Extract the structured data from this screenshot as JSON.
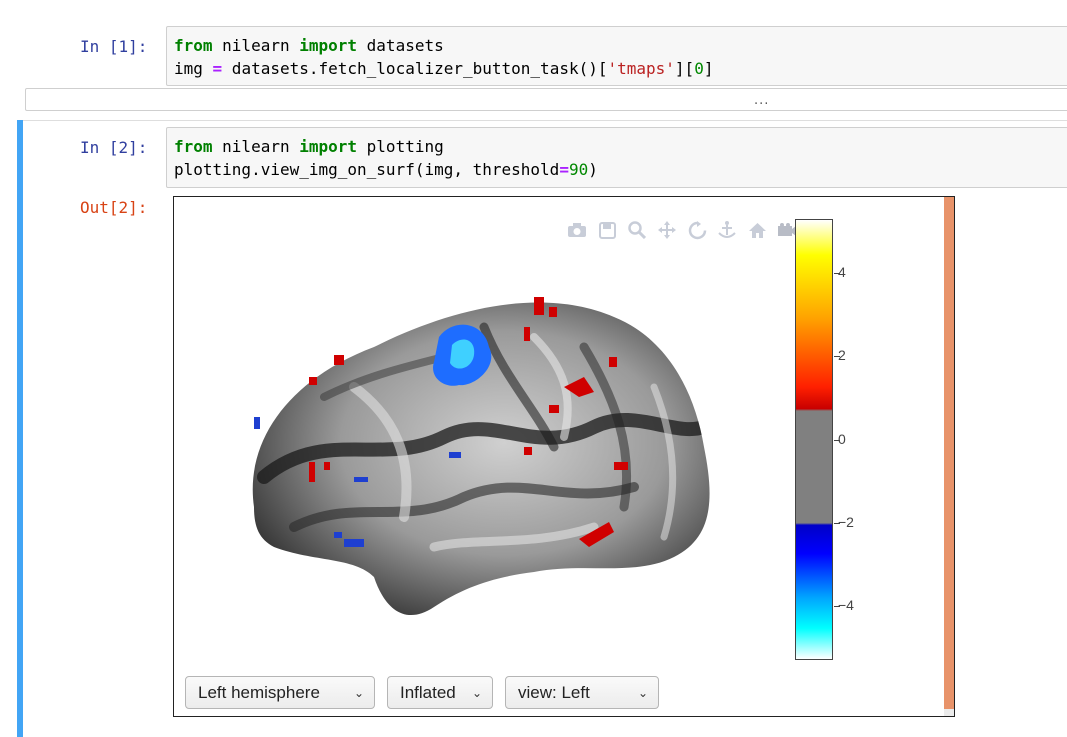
{
  "cells": [
    {
      "prompt": "In [1]:",
      "lines": [
        [
          {
            "t": "from",
            "c": "kw"
          },
          {
            "t": " nilearn ",
            "c": ""
          },
          {
            "t": "import",
            "c": "kw"
          },
          {
            "t": " datasets",
            "c": ""
          }
        ],
        [
          {
            "t": "img ",
            "c": ""
          },
          {
            "t": "=",
            "c": "op"
          },
          {
            "t": " datasets.fetch_localizer_button_task()[",
            "c": ""
          },
          {
            "t": "'tmaps'",
            "c": "str"
          },
          {
            "t": "][",
            "c": ""
          },
          {
            "t": "0",
            "c": "num"
          },
          {
            "t": "]",
            "c": ""
          }
        ]
      ]
    },
    {
      "prompt": "In [2]:",
      "lines": [
        [
          {
            "t": "from",
            "c": "kw"
          },
          {
            "t": " nilearn ",
            "c": ""
          },
          {
            "t": "import",
            "c": "kw"
          },
          {
            "t": " plotting",
            "c": ""
          }
        ],
        [
          {
            "t": "plotting.view_img_on_surf(img, threshold",
            "c": ""
          },
          {
            "t": "=",
            "c": "op"
          },
          {
            "t": "90",
            "c": "num"
          },
          {
            "t": ")",
            "c": ""
          }
        ]
      ]
    }
  ],
  "collapsed_output": "...",
  "out_prompt": "Out[2]:",
  "modebar_icons": [
    "camera-icon",
    "save-icon",
    "zoom-icon",
    "pan-icon",
    "orbit-icon",
    "turntable-icon",
    "home-icon",
    "camera-view-icon",
    "plotly-logo-icon"
  ],
  "colorbar": {
    "ticks": [
      {
        "label": "4",
        "value": 4
      },
      {
        "label": "2",
        "value": 2
      },
      {
        "label": "0",
        "value": 0
      },
      {
        "label": "−2",
        "value": -2
      },
      {
        "label": "−4",
        "value": -4
      }
    ],
    "range": [
      -5.3,
      5.3
    ],
    "colors": {
      "high": "#ffff00",
      "mid": "#808080",
      "low": "#0000ff"
    }
  },
  "selects": {
    "hemisphere": "Left hemisphere",
    "surface": "Inflated",
    "view": "view: Left"
  }
}
